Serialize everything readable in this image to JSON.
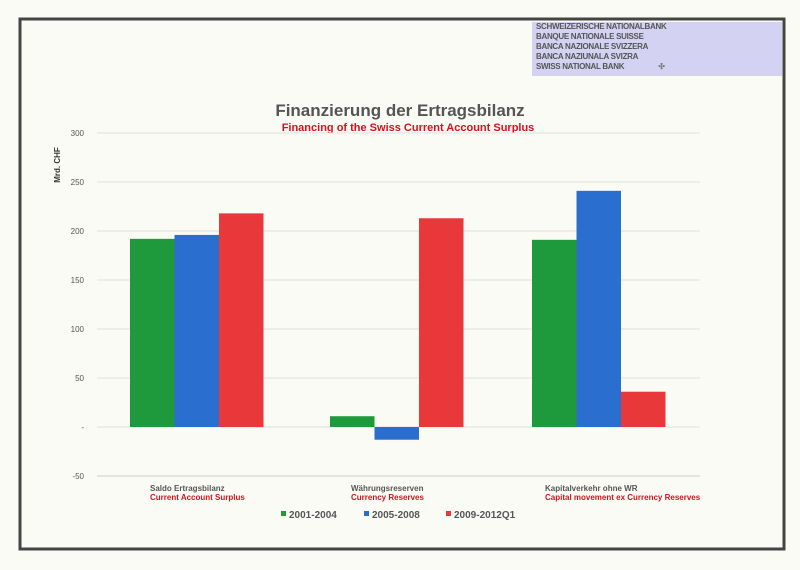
{
  "logo": {
    "lines": [
      "SCHWEIZERISCHE NATIONALBANK",
      "BANQUE NATIONALE SUISSE",
      "BANCA NAZIONALE SVIZZERA",
      "BANCA NAZIUNALA SVIZRA",
      "SWISS NATIONAL BANK"
    ]
  },
  "chart_data": {
    "type": "bar",
    "title": "Finanzierung der Ertragsbilanz",
    "subtitle": "Financing of the Swiss Current Account Surplus",
    "ylabel": "Mrd. CHF",
    "xlabel": "",
    "ylim": [
      -50,
      300
    ],
    "yticks": [
      300,
      250,
      200,
      150,
      100,
      50,
      0,
      -50
    ],
    "ytick_labels": [
      "300",
      "250",
      "200",
      "150",
      "100",
      "50",
      "-",
      "-50"
    ],
    "grid": true,
    "legend": "bottom",
    "categories": [
      "Saldo Ertragsbilanz",
      "Währungsreserven",
      "Kapitalverkehr ohne WR"
    ],
    "category_translations": [
      "Current Account Surplus",
      "Currency Reserves",
      "Capital movement ex Currency Reserves"
    ],
    "series": [
      {
        "name": "2001-2004",
        "color": "#1e9a3c",
        "values": [
          192,
          11,
          191
        ]
      },
      {
        "name": "2005-2008",
        "color": "#2a6fd0",
        "values": [
          196,
          -13,
          241
        ]
      },
      {
        "name": "2009-2012Q1",
        "color": "#e8383a",
        "values": [
          218,
          213,
          36
        ]
      }
    ]
  }
}
